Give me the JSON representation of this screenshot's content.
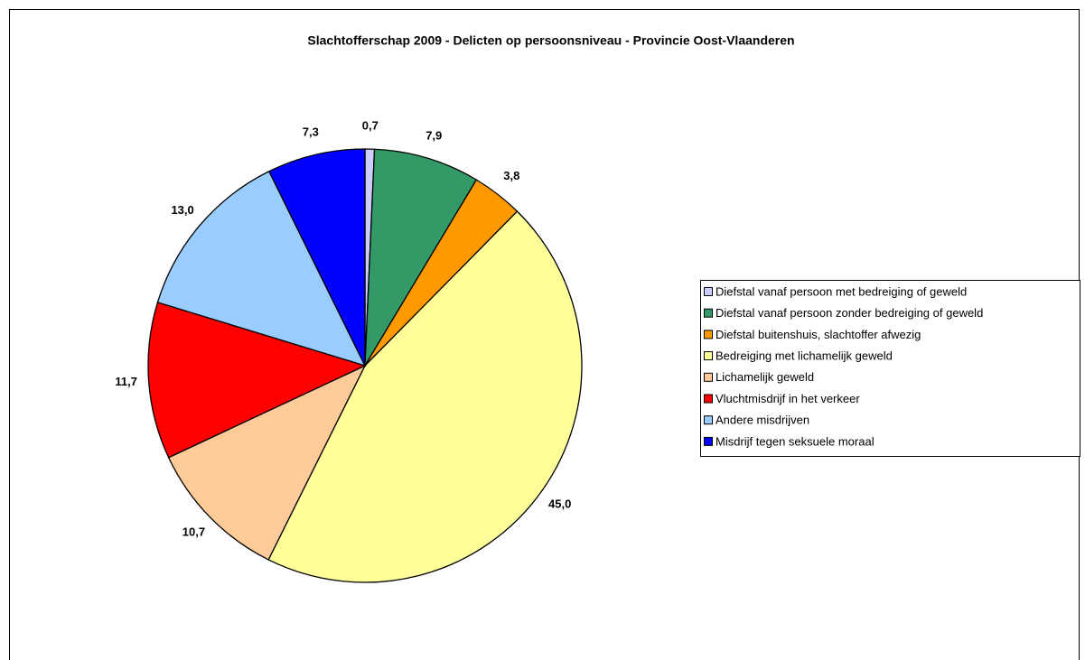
{
  "chart_data": {
    "type": "pie",
    "title": "Slachtofferschap 2009 - Delicten op persoonsniveau - Provincie Oost-Vlaanderen",
    "categories": [
      "Diefstal vanaf persoon met bedreiging of geweld",
      "Diefstal vanaf persoon zonder bedreiging of geweld",
      "Diefstal buitenshuis, slachtoffer afwezig",
      "Bedreiging met lichamelijk geweld",
      "Lichamelijk geweld",
      "Vluchtmisdrijf in het verkeer",
      "Andere misdrijven",
      "Misdrijf tegen seksuele moraal"
    ],
    "values": [
      0.7,
      7.9,
      3.8,
      45.0,
      10.7,
      11.7,
      13.0,
      7.3
    ],
    "value_labels": [
      "0,7",
      "7,9",
      "3,8",
      "45,0",
      "10,7",
      "11,7",
      "13,0",
      "7,3"
    ],
    "colors": [
      "#ccccff",
      "#339966",
      "#ff9900",
      "#ffff99",
      "#ffcc99",
      "#ff0000",
      "#99ccff",
      "#0000ff"
    ],
    "legend": "right"
  }
}
